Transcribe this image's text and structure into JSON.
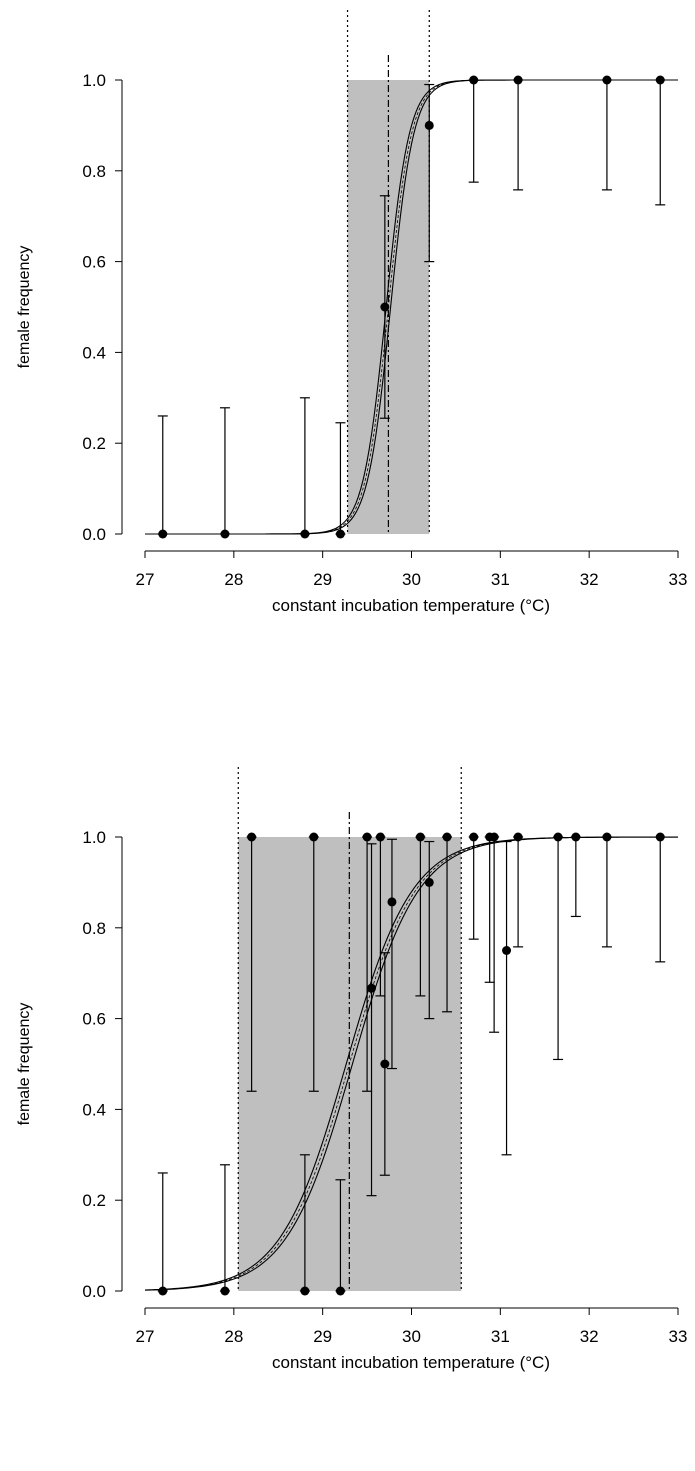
{
  "chart_data": [
    {
      "type": "scatter",
      "title": "",
      "xlabel": "constant incubation temperature (°C)",
      "ylabel": "female frequency",
      "xlim": [
        27,
        33
      ],
      "ylim": [
        0,
        1
      ],
      "xticks": [
        "27",
        "28",
        "29",
        "30",
        "31",
        "32",
        "33"
      ],
      "yticks": [
        "0.0",
        "0.2",
        "0.4",
        "0.6",
        "0.8",
        "1.0"
      ],
      "grid": false,
      "legend": "none",
      "shaded_interval": [
        29.28,
        30.2
      ],
      "shade_color": "#bfbfbf",
      "pivotal_temperature": 29.74,
      "logistic_fit": {
        "pivot": 29.74,
        "scale": 0.13,
        "band_offset": 0.025
      },
      "points": [
        {
          "x": 27.2,
          "y": 0.0,
          "lo": 0.0,
          "hi": 0.26
        },
        {
          "x": 27.9,
          "y": 0.0,
          "lo": 0.0,
          "hi": 0.278
        },
        {
          "x": 28.8,
          "y": 0.0,
          "lo": 0.0,
          "hi": 0.3
        },
        {
          "x": 29.2,
          "y": 0.0,
          "lo": 0.0,
          "hi": 0.245
        },
        {
          "x": 29.7,
          "y": 0.5,
          "lo": 0.255,
          "hi": 0.745
        },
        {
          "x": 30.2,
          "y": 0.9,
          "lo": 0.6,
          "hi": 0.99
        },
        {
          "x": 30.7,
          "y": 1.0,
          "lo": 0.775,
          "hi": 1.0
        },
        {
          "x": 31.2,
          "y": 1.0,
          "lo": 0.758,
          "hi": 1.0
        },
        {
          "x": 32.2,
          "y": 1.0,
          "lo": 0.758,
          "hi": 1.0
        },
        {
          "x": 32.8,
          "y": 1.0,
          "lo": 0.725,
          "hi": 1.0
        }
      ]
    },
    {
      "type": "scatter",
      "title": "",
      "xlabel": "constant incubation temperature (°C)",
      "ylabel": "female frequency",
      "xlim": [
        27,
        33
      ],
      "ylim": [
        0,
        1
      ],
      "xticks": [
        "27",
        "28",
        "29",
        "30",
        "31",
        "32",
        "33"
      ],
      "yticks": [
        "0.0",
        "0.2",
        "0.4",
        "0.6",
        "0.8",
        "1.0"
      ],
      "grid": false,
      "legend": "none",
      "shaded_interval": [
        28.05,
        30.56
      ],
      "shade_color": "#bfbfbf",
      "pivotal_temperature": 29.3,
      "logistic_fit": {
        "pivot": 29.3,
        "scale": 0.37,
        "band_offset": 0.035
      },
      "points": [
        {
          "x": 27.2,
          "y": 0.0,
          "lo": 0.0,
          "hi": 0.26
        },
        {
          "x": 27.9,
          "y": 0.0,
          "lo": 0.0,
          "hi": 0.278
        },
        {
          "x": 28.2,
          "y": 1.0,
          "lo": 0.44,
          "hi": 1.0
        },
        {
          "x": 28.8,
          "y": 0.0,
          "lo": 0.0,
          "hi": 0.3
        },
        {
          "x": 28.9,
          "y": 1.0,
          "lo": 0.44,
          "hi": 1.0
        },
        {
          "x": 29.2,
          "y": 0.0,
          "lo": 0.0,
          "hi": 0.245
        },
        {
          "x": 29.5,
          "y": 1.0,
          "lo": 0.44,
          "hi": 1.0
        },
        {
          "x": 29.55,
          "y": 0.667,
          "lo": 0.21,
          "hi": 0.985
        },
        {
          "x": 29.65,
          "y": 1.0,
          "lo": 0.65,
          "hi": 1.0
        },
        {
          "x": 29.7,
          "y": 0.5,
          "lo": 0.255,
          "hi": 0.745
        },
        {
          "x": 29.78,
          "y": 0.857,
          "lo": 0.49,
          "hi": 0.995
        },
        {
          "x": 30.1,
          "y": 1.0,
          "lo": 0.65,
          "hi": 1.0
        },
        {
          "x": 30.2,
          "y": 0.9,
          "lo": 0.6,
          "hi": 0.99
        },
        {
          "x": 30.4,
          "y": 1.0,
          "lo": 0.615,
          "hi": 1.0
        },
        {
          "x": 30.7,
          "y": 1.0,
          "lo": 0.775,
          "hi": 1.0
        },
        {
          "x": 30.88,
          "y": 1.0,
          "lo": 0.68,
          "hi": 1.0
        },
        {
          "x": 30.93,
          "y": 1.0,
          "lo": 0.57,
          "hi": 1.0
        },
        {
          "x": 31.07,
          "y": 0.75,
          "lo": 0.3,
          "hi": 0.99
        },
        {
          "x": 31.2,
          "y": 1.0,
          "lo": 0.758,
          "hi": 1.0
        },
        {
          "x": 31.65,
          "y": 1.0,
          "lo": 0.51,
          "hi": 1.0
        },
        {
          "x": 31.85,
          "y": 1.0,
          "lo": 0.825,
          "hi": 1.0
        },
        {
          "x": 32.2,
          "y": 1.0,
          "lo": 0.758,
          "hi": 1.0
        },
        {
          "x": 32.8,
          "y": 1.0,
          "lo": 0.725,
          "hi": 1.0
        }
      ]
    }
  ]
}
